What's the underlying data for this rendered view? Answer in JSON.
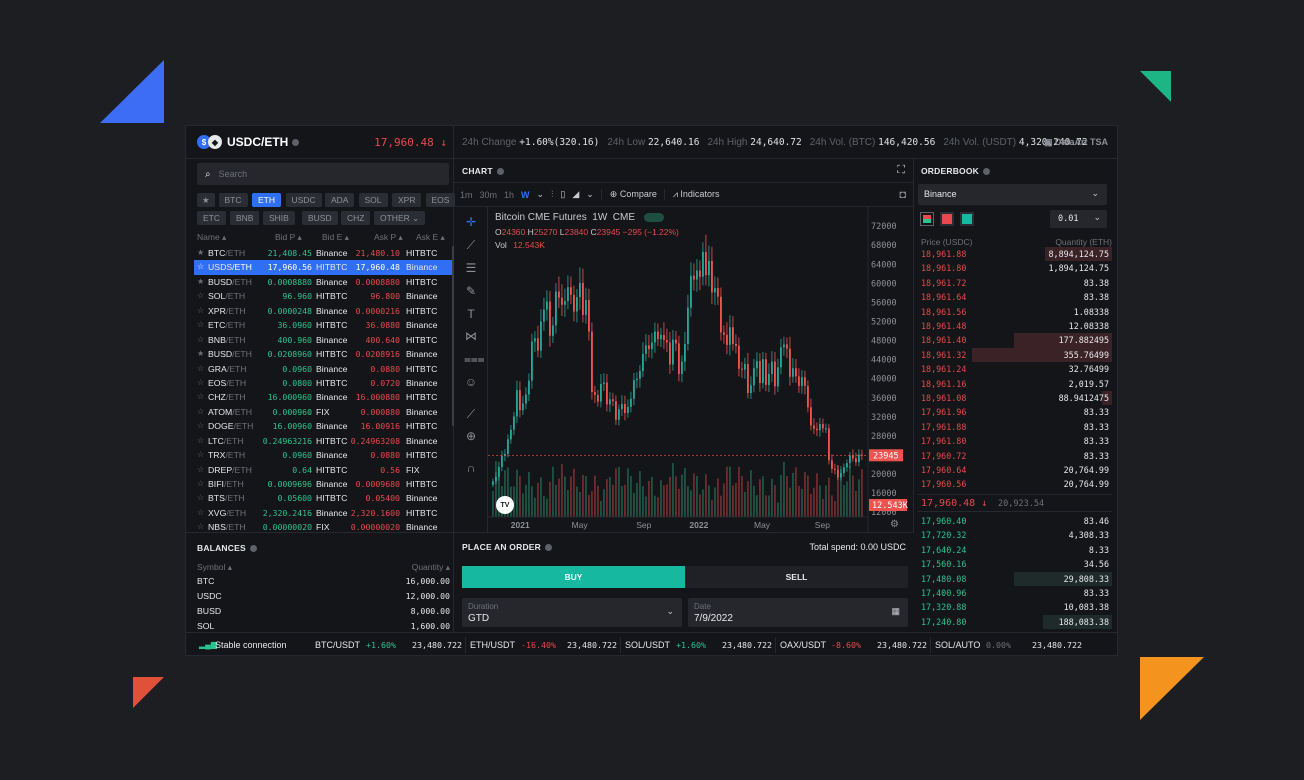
{
  "header": {
    "pair": "USDC/ETH",
    "price": "17,960.48 ↓",
    "stats": [
      {
        "label": "24h Change",
        "value": "+1.60%(320.16)",
        "color": "green"
      },
      {
        "label": "24h Low",
        "value": "22,640.16"
      },
      {
        "label": "24h High",
        "value": "24,640.72"
      },
      {
        "label": "24h Vol. (BTC)",
        "value": "146,420.56"
      },
      {
        "label": "24h Vol. (USDT)",
        "value": "4,320,240.72"
      }
    ],
    "brand": "DataArt TSA"
  },
  "search": {
    "placeholder": "Search"
  },
  "filters": {
    "row1": [
      "★",
      "BTC",
      "ETH",
      "USDC",
      "ADA",
      "SOL",
      "XPR",
      "EOS"
    ],
    "row2": [
      "ETC",
      "BNB",
      "SHIB",
      "BUSD",
      "CHZ",
      "OTHER ⌄"
    ],
    "active": "ETH"
  },
  "market_table": {
    "headers": [
      "Name ▴",
      "Bid P ▴",
      "Bid E ▴",
      "Ask P ▴",
      "Ask E ▴"
    ],
    "rows": [
      {
        "star": "★",
        "sym": "BTC",
        "quote": "/ETH",
        "bid": "21,408.45",
        "bid_ex": "Binance",
        "ask": "21,480.10",
        "ask_ex": "HITBTC",
        "bc": "g",
        "ac": "r"
      },
      {
        "star": "☆",
        "sym": "USDS",
        "quote": "/ETH",
        "bid": "17,960.56",
        "bid_ex": "HITBTC",
        "ask": "17,960.48",
        "ask_ex": "Binance",
        "bc": "g",
        "ac": "r",
        "selected": true
      },
      {
        "star": "★",
        "sym": "BUSD",
        "quote": "/ETH",
        "bid": "0.0008880",
        "bid_ex": "Binance",
        "ask": "0.0008880",
        "ask_ex": "HITBTC",
        "bc": "g",
        "ac": "r"
      },
      {
        "star": "☆",
        "sym": "SOL",
        "quote": "/ETH",
        "bid": "96.960",
        "bid_ex": "HITBTC",
        "ask": "96.800",
        "ask_ex": "Binance",
        "bc": "g",
        "ac": "r"
      },
      {
        "star": "☆",
        "sym": "XPR",
        "quote": "/ETH",
        "bid": "0.0000248",
        "bid_ex": "Binance",
        "ask": "0.0000216",
        "ask_ex": "HITBTC",
        "bc": "g",
        "ac": "r"
      },
      {
        "star": "☆",
        "sym": "ETC",
        "quote": "/ETH",
        "bid": "36.0960",
        "bid_ex": "HITBTC",
        "ask": "36.0880",
        "ask_ex": "Binance",
        "bc": "g",
        "ac": "r"
      },
      {
        "star": "☆",
        "sym": "BNB",
        "quote": "/ETH",
        "bid": "400.960",
        "bid_ex": "Binance",
        "ask": "400.640",
        "ask_ex": "HITBTC",
        "bc": "g",
        "ac": "r"
      },
      {
        "star": "★",
        "sym": "BUSD",
        "quote": "/ETH",
        "bid": "0.0208960",
        "bid_ex": "HITBTC",
        "ask": "0.0208916",
        "ask_ex": "Binance",
        "bc": "g",
        "ac": "r"
      },
      {
        "star": "☆",
        "sym": "GRA",
        "quote": "/ETH",
        "bid": "0.0960",
        "bid_ex": "Binance",
        "ask": "0.0880",
        "ask_ex": "HITBTC",
        "bc": "g",
        "ac": "r"
      },
      {
        "star": "☆",
        "sym": "EOS",
        "quote": "/ETH",
        "bid": "0.0800",
        "bid_ex": "HITBTC",
        "ask": "0.0720",
        "ask_ex": "Binance",
        "bc": "g",
        "ac": "r"
      },
      {
        "star": "☆",
        "sym": "CHZ",
        "quote": "/ETH",
        "bid": "16.000960",
        "bid_ex": "Binance",
        "ask": "16.000880",
        "ask_ex": "HITBTC",
        "bc": "g",
        "ac": "r"
      },
      {
        "star": "☆",
        "sym": "ATOM",
        "quote": "/ETH",
        "bid": "0.000960",
        "bid_ex": "FIX",
        "ask": "0.000880",
        "ask_ex": "Binance",
        "bc": "g",
        "ac": "r"
      },
      {
        "star": "☆",
        "sym": "DOGE",
        "quote": "/ETH",
        "bid": "16.00960",
        "bid_ex": "Binance",
        "ask": "16.00916",
        "ask_ex": "HITBTC",
        "bc": "g",
        "ac": "r"
      },
      {
        "star": "☆",
        "sym": "LTC",
        "quote": "/ETH",
        "bid": "0.24963216",
        "bid_ex": "HITBTC",
        "ask": "0.24963208",
        "ask_ex": "Binance",
        "bc": "g",
        "ac": "r"
      },
      {
        "star": "☆",
        "sym": "TRX",
        "quote": "/ETH",
        "bid": "0.0960",
        "bid_ex": "Binance",
        "ask": "0.0880",
        "ask_ex": "HITBTC",
        "bc": "g",
        "ac": "r"
      },
      {
        "star": "☆",
        "sym": "DREP",
        "quote": "/ETH",
        "bid": "0.64",
        "bid_ex": "HITBTC",
        "ask": "0.56",
        "ask_ex": "FIX",
        "bc": "g",
        "ac": "r"
      },
      {
        "star": "☆",
        "sym": "BIFI",
        "quote": "/ETH",
        "bid": "0.0009696",
        "bid_ex": "Binance",
        "ask": "0.0009680",
        "ask_ex": "HITBTC",
        "bc": "g",
        "ac": "r"
      },
      {
        "star": "☆",
        "sym": "BTS",
        "quote": "/ETH",
        "bid": "0.05600",
        "bid_ex": "HITBTC",
        "ask": "0.05400",
        "ask_ex": "Binance",
        "bc": "g",
        "ac": "r"
      },
      {
        "star": "☆",
        "sym": "XVG",
        "quote": "/ETH",
        "bid": "2,320.2416",
        "bid_ex": "Binance",
        "ask": "2,320.1600",
        "ask_ex": "HITBTC",
        "bc": "g",
        "ac": "r"
      },
      {
        "star": "☆",
        "sym": "NBS",
        "quote": "/ETH",
        "bid": "0.00000020",
        "bid_ex": "FIX",
        "ask": "0.00000020",
        "ask_ex": "Binance",
        "bc": "g",
        "ac": "r"
      }
    ]
  },
  "balances": {
    "title": "BALANCES",
    "symbol_header": "Symbol ▴",
    "quantity_header": "Quantity ▴",
    "rows": [
      {
        "sym": "BTC",
        "qty": "16,000.00"
      },
      {
        "sym": "USDC",
        "qty": "12,000.00"
      },
      {
        "sym": "BUSD",
        "qty": "8,000.00"
      },
      {
        "sym": "SOL",
        "qty": "1,600.00"
      }
    ]
  },
  "chart_panel": {
    "title": "CHART",
    "intervals": [
      "1m",
      "30m",
      "1h",
      "W"
    ],
    "active_interval": "W",
    "compare_label": "Compare",
    "indicators_label": "Indicators",
    "symbol_line": "Bitcoin CME Futures  1W  CME",
    "ohlc": {
      "O": "24360",
      "H": "25270",
      "L": "23840",
      "C": "23945",
      "chg": "−295 (−1.22%)"
    },
    "vol_label": "Vol",
    "vol_value": "12.543K",
    "price_tag": "23945",
    "vol_tag": "12.543K",
    "tv_logo": "TV"
  },
  "chart_data": {
    "type": "candlestick",
    "title": "Bitcoin CME Futures 1W CME",
    "y_ticks": [
      72000,
      68000,
      64000,
      60000,
      56000,
      52000,
      48000,
      44000,
      40000,
      36000,
      32000,
      28000,
      24000,
      20000,
      16000,
      12000
    ],
    "ylim": [
      11000,
      73500
    ],
    "x_ticks": [
      "2021",
      "May",
      "Sep",
      "2022",
      "May",
      "Sep"
    ],
    "closes": [
      18500,
      19400,
      21500,
      23800,
      24200,
      27300,
      29300,
      32100,
      37600,
      33400,
      34800,
      36700,
      39600,
      47800,
      48500,
      45900,
      52000,
      54500,
      56200,
      49000,
      51200,
      58300,
      57000,
      55500,
      56300,
      59200,
      57600,
      54100,
      57100,
      60100,
      53400,
      56500,
      49900,
      37200,
      36600,
      35200,
      38900,
      39200,
      34600,
      35700,
      35300,
      31400,
      33600,
      34700,
      32800,
      34100,
      35800,
      39700,
      40000,
      41600,
      45200,
      47000,
      46200,
      47600,
      49900,
      48300,
      49200,
      48100,
      47600,
      43000,
      48200,
      47400,
      41000,
      43600,
      47300,
      54900,
      61600,
      60800,
      62700,
      61400,
      66600,
      61700,
      64700,
      58100,
      59000,
      57200,
      49700,
      49200,
      47100,
      50800,
      47300,
      46900,
      42100,
      41900,
      43100,
      37000,
      38600,
      42200,
      43700,
      39100,
      44100,
      38700,
      41000,
      43600,
      38400,
      42400,
      46600,
      47200,
      46300,
      40400,
      42200,
      40500,
      38500,
      40300,
      38500,
      34000,
      30200,
      29500,
      29200,
      30500,
      29600,
      29600,
      22900,
      21100,
      20900,
      19300,
      20200,
      21400,
      22300,
      23900,
      23300,
      22500,
      24100,
      23945
    ],
    "last_price": 23945,
    "last_volume": "12.543K"
  },
  "order": {
    "title": "PLACE AN ORDER",
    "total": "Total spend: 0.00 USDC",
    "buy": "BUY",
    "sell": "SELL",
    "duration_label": "Duration",
    "duration_value": "GTD",
    "date_label": "Date",
    "date_value": "7/9/2022"
  },
  "orderbook": {
    "title": "ORDERBOOK",
    "exchange": "Binance",
    "step": "0.01",
    "price_header": "Price (USDC)",
    "qty_header": "Quantity (ETH)",
    "asks": [
      {
        "p": "18,961.88",
        "q": "8,894,124.75",
        "d": 0.48
      },
      {
        "p": "18,961.80",
        "q": "1,894,124.75",
        "d": 0
      },
      {
        "p": "18,961.72",
        "q": "83.38",
        "d": 0
      },
      {
        "p": "18,961.64",
        "q": "83.38",
        "d": 0
      },
      {
        "p": "18,961.56",
        "q": "1.08338",
        "d": 0
      },
      {
        "p": "18,961.48",
        "q": "12.08338",
        "d": 0
      },
      {
        "p": "18,961.40",
        "q": "177.882495",
        "d": 0.7
      },
      {
        "p": "18,961.32",
        "q": "355.76499",
        "d": 1
      },
      {
        "p": "18,961.24",
        "q": "32.76499",
        "d": 0
      },
      {
        "p": "18,961.16",
        "q": "2,019.57",
        "d": 0
      },
      {
        "p": "18,961.08",
        "q": "88.9412475",
        "d": 0.07
      },
      {
        "p": "17,961.96",
        "q": "83.33",
        "d": 0
      },
      {
        "p": "17,961.88",
        "q": "83.33",
        "d": 0
      },
      {
        "p": "17,961.80",
        "q": "83.33",
        "d": 0
      },
      {
        "p": "17,960.72",
        "q": "83.33",
        "d": 0
      },
      {
        "p": "17,960.64",
        "q": "20,764.99",
        "d": 0
      },
      {
        "p": "17,960.56",
        "q": "20,764.99",
        "d": 0
      }
    ],
    "mid_price": "17,960.48 ↓",
    "mid_secondary": "20,923.54",
    "bids": [
      {
        "p": "17,960.40",
        "q": "83.46",
        "d": 0
      },
      {
        "p": "17,720.32",
        "q": "4,308.33",
        "d": 0
      },
      {
        "p": "17,640.24",
        "q": "8.33",
        "d": 0
      },
      {
        "p": "17,560.16",
        "q": "34.56",
        "d": 0
      },
      {
        "p": "17,480.08",
        "q": "29,808.33",
        "d": 0.7
      },
      {
        "p": "17,400.96",
        "q": "83.33",
        "d": 0
      },
      {
        "p": "17,320.88",
        "q": "10,083.38",
        "d": 0
      },
      {
        "p": "17,240.80",
        "q": "188,083.38",
        "d": 0.49
      }
    ]
  },
  "footer": {
    "status": "Stable connection",
    "tickers": [
      {
        "pair": "BTC/USDT",
        "chg": "+1.60%",
        "price": "23,480.722",
        "dir": "g"
      },
      {
        "pair": "ETH/USDT",
        "chg": "-16.40%",
        "price": "23,480.722",
        "dir": "r"
      },
      {
        "pair": "SOL/USDT",
        "chg": "+1.60%",
        "price": "23,480.722",
        "dir": "g"
      },
      {
        "pair": "OAX/USDT",
        "chg": "-8.60%",
        "price": "23,480.722",
        "dir": "r"
      },
      {
        "pair": "SOL/AUTO",
        "chg": "0.00%",
        "price": "23,480.722",
        "dir": "mu"
      }
    ]
  },
  "colors": {
    "bg": "#1c1e22",
    "panel": "#141518",
    "accent": "#2f6ff5",
    "green": "#27c48d",
    "red": "#e8484e",
    "buy": "#16b8a0",
    "deco_blue": "#3d6cf5",
    "deco_green": "#1db584",
    "deco_red": "#e0513a",
    "deco_orange": "#f5931f"
  }
}
